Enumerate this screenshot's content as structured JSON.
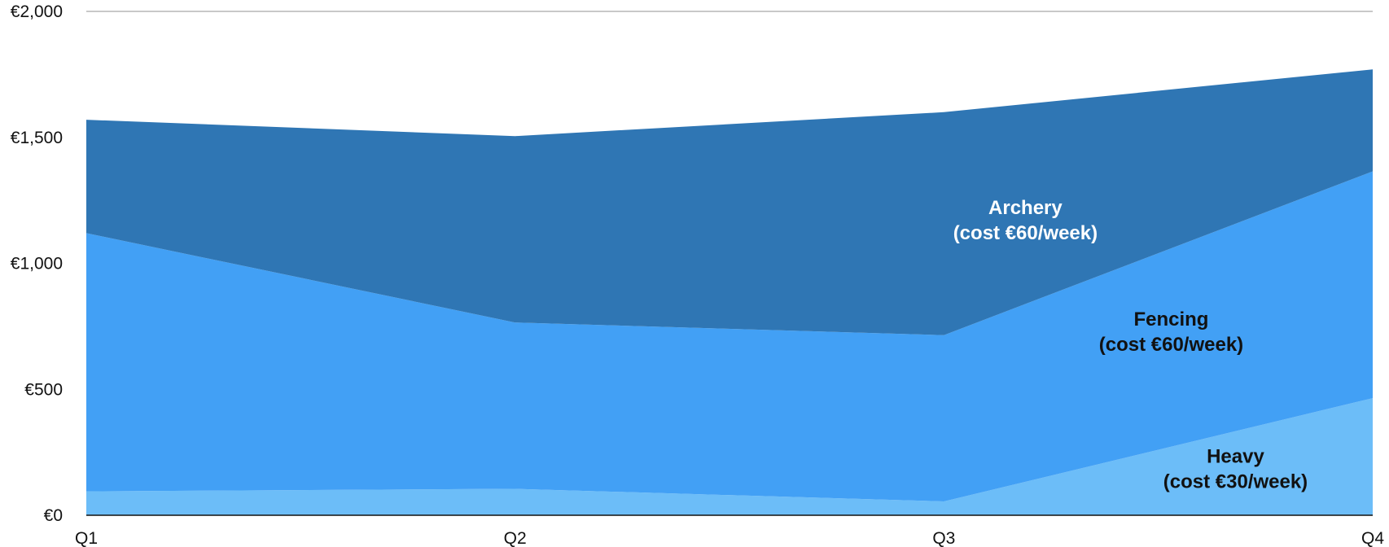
{
  "chart_data": {
    "type": "area",
    "stacked": true,
    "categories": [
      "Q1",
      "Q2",
      "Q3",
      "Q4"
    ],
    "y_ticks": [
      "€0",
      "€500",
      "€1,000",
      "€1,500",
      "€2,000"
    ],
    "ylim": [
      0,
      2000
    ],
    "gridlines": "top only",
    "legend": "none (inline labels)",
    "series": [
      {
        "name": "Heavy",
        "label_lines": [
          "Heavy",
          "(cost €30/week)"
        ],
        "values": [
          95,
          105,
          55,
          465
        ],
        "color": "#6cbdf8",
        "label_color": "#111111"
      },
      {
        "name": "Fencing",
        "label_lines": [
          "Fencing",
          "(cost €60/week)"
        ],
        "values": [
          1025,
          660,
          660,
          900
        ],
        "color": "#42a0f5",
        "label_color": "#111111"
      },
      {
        "name": "Archery",
        "label_lines": [
          "Archery",
          "(cost €60/week)"
        ],
        "values": [
          450,
          740,
          885,
          405
        ],
        "color": "#2f76b4",
        "label_color": "#ffffff"
      }
    ]
  }
}
